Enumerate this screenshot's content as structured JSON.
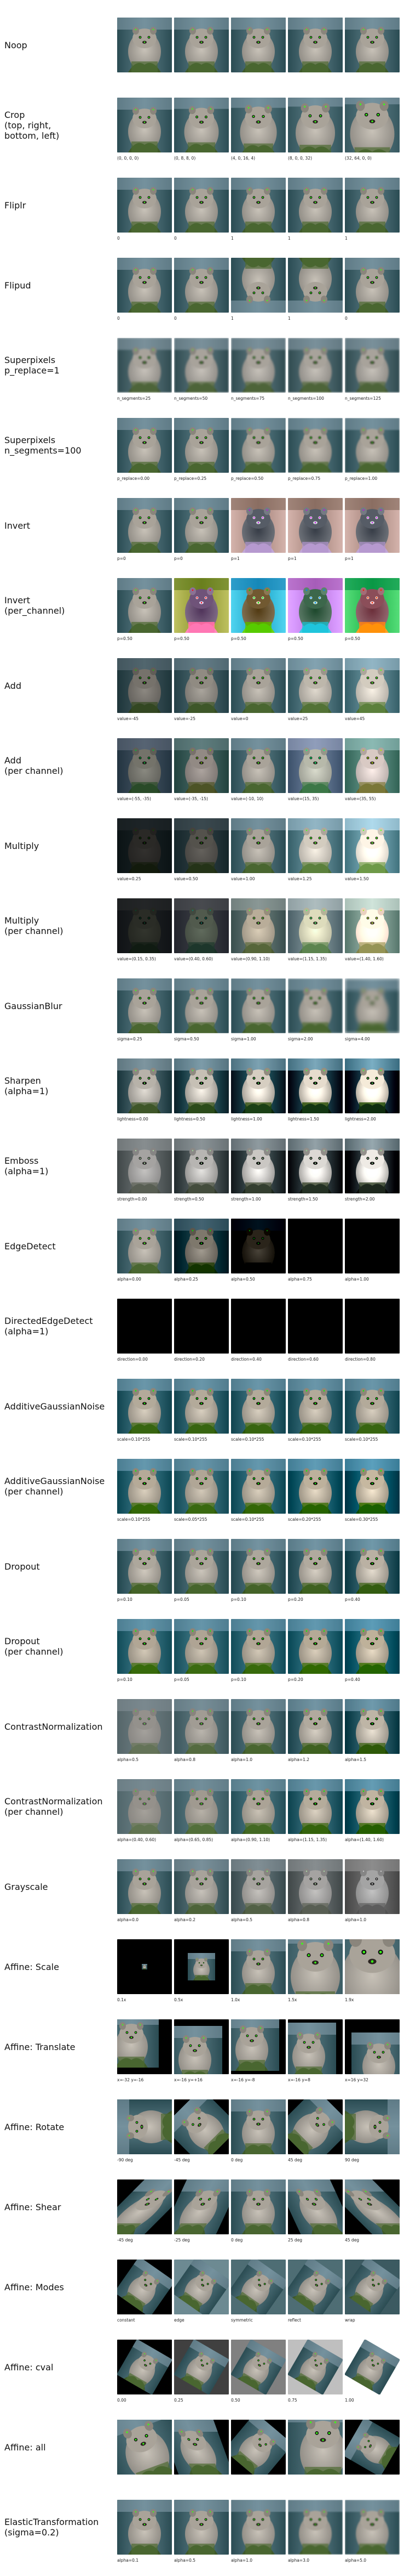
{
  "figure": {
    "rows": [
      {
        "title": "Noop",
        "captions": [
          "",
          "",
          "",
          "",
          ""
        ]
      },
      {
        "title": "Crop\n(top, right,\nbottom, left)",
        "captions": [
          "(0, 0, 0, 0)",
          "(0, 8, 8, 0)",
          "(4, 0, 16, 4)",
          "(8, 0, 0, 32)",
          "(32, 64, 0, 0)"
        ]
      },
      {
        "title": "Fliplr",
        "captions": [
          "0",
          "0",
          "1",
          "1",
          "1"
        ]
      },
      {
        "title": "Flipud",
        "captions": [
          "0",
          "0",
          "1",
          "1",
          "0"
        ]
      },
      {
        "title": "Superpixels\np_replace=1",
        "captions": [
          "n_segments=25",
          "n_segments=50",
          "n_segments=75",
          "n_segments=100",
          "n_segments=125"
        ]
      },
      {
        "title": "Superpixels\nn_segments=100",
        "captions": [
          "p_replace=0.00",
          "p_replace=0.25",
          "p_replace=0.50",
          "p_replace=0.75",
          "p_replace=1.00"
        ]
      },
      {
        "title": "Invert",
        "captions": [
          "p=0",
          "p=0",
          "p=1",
          "p=1",
          "p=1"
        ]
      },
      {
        "title": "Invert\n(per_channel)",
        "captions": [
          "p=0.50",
          "p=0.50",
          "p=0.50",
          "p=0.50",
          "p=0.50"
        ]
      },
      {
        "title": "Add",
        "captions": [
          "value=-45",
          "value=-25",
          "value=0",
          "value=25",
          "value=45"
        ]
      },
      {
        "title": "Add\n(per channel)",
        "captions": [
          "value=(-55, -35)",
          "value=(-35, -15)",
          "value=(-10, 10)",
          "value=(15, 35)",
          "value=(35, 55)"
        ]
      },
      {
        "title": "Multiply",
        "captions": [
          "value=0.25",
          "value=0.50",
          "value=1.00",
          "value=1.25",
          "value=1.50"
        ]
      },
      {
        "title": "Multiply\n(per channel)",
        "captions": [
          "value=(0.15, 0.35)",
          "value=(0.40, 0.60)",
          "value=(0.90, 1.10)",
          "value=(1.15, 1.35)",
          "value=(1.40, 1.60)"
        ]
      },
      {
        "title": "GaussianBlur",
        "captions": [
          "sigma=0.25",
          "sigma=0.50",
          "sigma=1.00",
          "sigma=2.00",
          "sigma=4.00"
        ]
      },
      {
        "title": "Sharpen\n(alpha=1)",
        "captions": [
          "lightness=0.00",
          "lightness=0.50",
          "lightness=1.00",
          "lightness=1.50",
          "lightness=2.00"
        ]
      },
      {
        "title": "Emboss\n(alpha=1)",
        "captions": [
          "strength=0.00",
          "strength=0.50",
          "strength=1.00",
          "strength=1.50",
          "strength=2.00"
        ]
      },
      {
        "title": "EdgeDetect",
        "captions": [
          "alpha=0.00",
          "alpha=0.25",
          "alpha=0.50",
          "alpha=0.75",
          "alpha=1.00"
        ]
      },
      {
        "title": "DirectedEdgeDetect\n(alpha=1)",
        "captions": [
          "direction=0.00",
          "direction=0.20",
          "direction=0.40",
          "direction=0.60",
          "direction=0.80"
        ]
      },
      {
        "title": "AdditiveGaussianNoise",
        "captions": [
          "scale=0.10*255",
          "scale=0.10*255",
          "scale=0.10*255",
          "scale=0.10*255",
          "scale=0.10*255"
        ]
      },
      {
        "title": "AdditiveGaussianNoise\n(per channel)",
        "captions": [
          "scale=0.10*255",
          "scale=0.05*255",
          "scale=0.10*255",
          "scale=0.20*255",
          "scale=0.30*255"
        ]
      },
      {
        "title": "Dropout",
        "captions": [
          "p=0.10",
          "p=0.05",
          "p=0.10",
          "p=0.20",
          "p=0.40"
        ]
      },
      {
        "title": "Dropout\n(per channel)",
        "captions": [
          "p=0.10",
          "p=0.05",
          "p=0.10",
          "p=0.20",
          "p=0.40"
        ]
      },
      {
        "title": "ContrastNormalization",
        "captions": [
          "alpha=0.5",
          "alpha=0.8",
          "alpha=1.0",
          "alpha=1.2",
          "alpha=1.5"
        ]
      },
      {
        "title": "ContrastNormalization\n(per channel)",
        "captions": [
          "alpha=(0.40, 0.60)",
          "alpha=(0.65, 0.85)",
          "alpha=(0.90, 1.10)",
          "alpha=(1.15, 1.35)",
          "alpha=(1.40, 1.60)"
        ]
      },
      {
        "title": "Grayscale",
        "captions": [
          "alpha=0.0",
          "alpha=0.2",
          "alpha=0.5",
          "alpha=0.8",
          "alpha=1.0"
        ]
      },
      {
        "title": "Affine: Scale",
        "captions": [
          "0.1x",
          "0.5x",
          "1.0x",
          "1.5x",
          "1.9x"
        ]
      },
      {
        "title": "Affine: Translate",
        "captions": [
          "x=-32 y=-16",
          "x=-16 y=+16",
          "x=-16 y=-8",
          "x=-16 y=8",
          "x=16 y=32"
        ]
      },
      {
        "title": "Affine: Rotate",
        "captions": [
          "-90 deg",
          "-45 deg",
          "0 deg",
          "45 deg",
          "90 deg"
        ]
      },
      {
        "title": "Affine: Shear",
        "captions": [
          "-45 deg",
          "-25 deg",
          "0 deg",
          "25 deg",
          "45 deg"
        ]
      },
      {
        "title": "Affine: Modes",
        "captions": [
          "constant",
          "edge",
          "symmetric",
          "reflect",
          "wrap"
        ]
      },
      {
        "title": "Affine: cval",
        "captions": [
          "0.00",
          "0.25",
          "0.50",
          "0.75",
          "1.00"
        ]
      },
      {
        "title": "Affine: all",
        "captions": [
          "",
          "",
          "",
          "",
          ""
        ]
      },
      {
        "title": "ElasticTransformation\n(sigma=0.2)",
        "captions": [
          "alpha=0.1",
          "alpha=0.5",
          "alpha=1.0",
          "alpha=3.0",
          "alpha=5.0"
        ]
      }
    ]
  },
  "colors": {
    "page_background": "#ffffff",
    "sky": "#8aa3b0",
    "backdrop_dark": "#2b4c53",
    "fur": "#8f8b84",
    "fur_light": "#c8c2b8",
    "foliage": "#3f5a2a",
    "keypoint": "#39ff14",
    "text": "#111111"
  },
  "icons": {
    "sample_image": "quokka-photo",
    "keypoint_marker": "green-dot"
  }
}
